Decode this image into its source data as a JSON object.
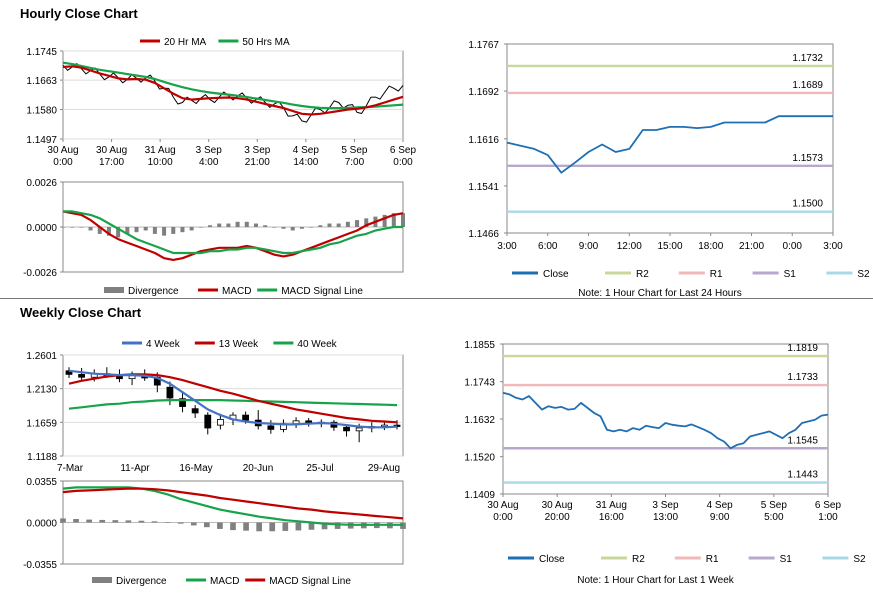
{
  "sections": {
    "hourly_title": "Hourly Close Chart",
    "weekly_title": "Weekly Close Chart"
  },
  "colors": {
    "close": "#1F6FB3",
    "ma_red": "#C00000",
    "ma_green": "#16A34A",
    "r2": "#C8D89A",
    "r1": "#F0B8B8",
    "s1": "#B8A8CE",
    "s2": "#A8D8E8",
    "divergence": "#808080",
    "week4": "#4472C4"
  },
  "chart_data": [
    {
      "id": "hourly_price",
      "type": "line",
      "title": "Hourly Close Chart",
      "legend": [
        "20 Hr MA",
        "50 Hrs MA"
      ],
      "y_ticks": [
        "1.1745",
        "1.1663",
        "1.1580",
        "1.1497"
      ],
      "ylim": [
        1.1497,
        1.1745
      ],
      "x_ticks": [
        [
          "30 Aug",
          "0:00"
        ],
        [
          "30 Aug",
          "17:00"
        ],
        [
          "31 Aug",
          "10:00"
        ],
        [
          "3 Sep",
          "4:00"
        ],
        [
          "3 Sep",
          "21:00"
        ],
        [
          "4 Sep",
          "14:00"
        ],
        [
          "5 Sep",
          "7:00"
        ],
        [
          "6 Sep",
          "0:00"
        ]
      ],
      "series": [
        {
          "name": "Close",
          "values": [
            1.1705,
            1.17,
            1.1695,
            1.169,
            1.168,
            1.1672,
            1.167,
            1.1665,
            1.1668,
            1.167,
            1.166,
            1.164,
            1.1615,
            1.16,
            1.1606,
            1.1612,
            1.1608,
            1.1615,
            1.162,
            1.1618,
            1.1612,
            1.1608,
            1.16,
            1.1596,
            1.1585,
            1.1562,
            1.1548,
            1.1565,
            1.158,
            1.1585,
            1.16,
            1.1592,
            1.1572,
            1.159,
            1.1615,
            1.1628,
            1.164,
            1.1648
          ]
        },
        {
          "name": "20 Hr MA",
          "values": [
            1.17,
            1.1702,
            1.1698,
            1.169,
            1.1682,
            1.1675,
            1.1668,
            1.1665,
            1.1666,
            1.1664,
            1.1655,
            1.164,
            1.1625,
            1.1612,
            1.1608,
            1.161,
            1.1612,
            1.1613,
            1.1614,
            1.1612,
            1.1608,
            1.1602,
            1.1596,
            1.159,
            1.1584,
            1.1576,
            1.1568,
            1.1566,
            1.1568,
            1.1572,
            1.1576,
            1.158,
            1.1582,
            1.1586,
            1.1592,
            1.16,
            1.1608,
            1.1616
          ]
        },
        {
          "name": "50 Hrs MA",
          "values": [
            1.1712,
            1.1708,
            1.1703,
            1.1697,
            1.1692,
            1.1688,
            1.1684,
            1.168,
            1.1676,
            1.1672,
            1.1666,
            1.1658,
            1.165,
            1.1643,
            1.1637,
            1.1632,
            1.1628,
            1.1625,
            1.1622,
            1.1619,
            1.1615,
            1.1611,
            1.1607,
            1.1603,
            1.1599,
            1.1594,
            1.159,
            1.1587,
            1.1585,
            1.1584,
            1.1584,
            1.1585,
            1.1586,
            1.1587,
            1.1588,
            1.159,
            1.1592,
            1.1594
          ]
        }
      ]
    },
    {
      "id": "hourly_macd",
      "type": "bar",
      "legend": [
        "Divergence",
        "MACD",
        "MACD Signal Line"
      ],
      "y_ticks": [
        "0.0026",
        "0.0000",
        "-0.0026"
      ],
      "ylim": [
        -0.0026,
        0.0026
      ],
      "series": [
        {
          "name": "Divergence",
          "values": [
            0.0,
            0.0,
            0.0,
            -0.0002,
            -0.0004,
            -0.0005,
            -0.0006,
            -0.0004,
            -0.0003,
            -0.0002,
            -0.0004,
            -0.0005,
            -0.0004,
            -0.0003,
            -0.0002,
            0.0,
            0.0001,
            0.0002,
            0.0002,
            0.0003,
            0.0003,
            0.0002,
            0.0001,
            0.0,
            -0.0001,
            -0.0002,
            -0.0001,
            0.0,
            0.0001,
            0.0002,
            0.0002,
            0.0003,
            0.0004,
            0.0005,
            0.0006,
            0.0007,
            0.0008,
            0.0008
          ]
        },
        {
          "name": "MACD",
          "values": [
            0.0009,
            0.0008,
            0.0007,
            0.0004,
            0.0,
            -0.0004,
            -0.0007,
            -0.0009,
            -0.0011,
            -0.0013,
            -0.0015,
            -0.0018,
            -0.0019,
            -0.0018,
            -0.0016,
            -0.0014,
            -0.0013,
            -0.0012,
            -0.0012,
            -0.0012,
            -0.0011,
            -0.0012,
            -0.0014,
            -0.0016,
            -0.0017,
            -0.0016,
            -0.0014,
            -0.0012,
            -0.001,
            -0.0008,
            -0.0006,
            -0.0004,
            -0.0002,
            0.0001,
            0.0003,
            0.0005,
            0.0007,
            0.0008
          ]
        },
        {
          "name": "MACD Signal Line",
          "values": [
            0.0009,
            0.0009,
            0.0008,
            0.0007,
            0.0005,
            0.0002,
            -0.0001,
            -0.0004,
            -0.0007,
            -0.0009,
            -0.0011,
            -0.0013,
            -0.0015,
            -0.0015,
            -0.0015,
            -0.0015,
            -0.0014,
            -0.0014,
            -0.0013,
            -0.0013,
            -0.0012,
            -0.0012,
            -0.0013,
            -0.0014,
            -0.0015,
            -0.0015,
            -0.0014,
            -0.0013,
            -0.0012,
            -0.001,
            -0.0009,
            -0.0007,
            -0.0005,
            -0.0004,
            -0.0002,
            -0.0001,
            0.0,
            0.0
          ]
        }
      ]
    },
    {
      "id": "hourly_24h",
      "type": "line",
      "y_ticks": [
        "1.1767",
        "1.1692",
        "1.1616",
        "1.1541",
        "1.1466"
      ],
      "ylim": [
        1.1466,
        1.1767
      ],
      "x_ticks": [
        "3:00",
        "6:00",
        "9:00",
        "12:00",
        "15:00",
        "18:00",
        "21:00",
        "0:00",
        "3:00"
      ],
      "levels": [
        {
          "name": "R2",
          "value": 1.1732,
          "label": "1.1732"
        },
        {
          "name": "R1",
          "value": 1.1689,
          "label": "1.1689"
        },
        {
          "name": "S1",
          "value": 1.1573,
          "label": "1.1573"
        },
        {
          "name": "S2",
          "value": 1.15,
          "label": "1.1500"
        }
      ],
      "x": [
        0,
        1,
        2,
        3,
        4,
        5,
        6,
        7,
        8,
        9,
        10,
        11,
        12,
        13,
        14,
        15,
        16,
        17,
        18,
        19,
        20,
        21,
        22,
        23,
        24
      ],
      "values": [
        1.161,
        1.1605,
        1.16,
        1.159,
        1.1562,
        1.1578,
        1.1595,
        1.1607,
        1.1595,
        1.16,
        1.163,
        1.163,
        1.1635,
        1.1635,
        1.1633,
        1.1635,
        1.1642,
        1.1642,
        1.1642,
        1.1642,
        1.1652,
        1.1652,
        1.1652,
        1.1652,
        1.1652
      ],
      "legend": [
        "Close",
        "R2",
        "R1",
        "S1",
        "S2"
      ],
      "note": "Note: 1 Hour Chart for Last 24 Hours"
    },
    {
      "id": "weekly_price",
      "type": "line",
      "title": "Weekly Close Chart",
      "legend": [
        "4 Week",
        "13 Week",
        "40 Week"
      ],
      "y_ticks": [
        "1.2601",
        "1.2130",
        "1.1659",
        "1.1188"
      ],
      "ylim": [
        1.1188,
        1.2601
      ],
      "x_ticks": [
        "7-Mar",
        "11-Apr",
        "16-May",
        "20-Jun",
        "25-Jul",
        "29-Aug"
      ],
      "candles": [
        {
          "o": 1.238,
          "c": 1.233,
          "h": 1.243,
          "l": 1.228
        },
        {
          "o": 1.233,
          "c": 1.229,
          "h": 1.242,
          "l": 1.223
        },
        {
          "o": 1.229,
          "c": 1.234,
          "h": 1.24,
          "l": 1.223
        },
        {
          "o": 1.234,
          "c": 1.23,
          "h": 1.243,
          "l": 1.228
        },
        {
          "o": 1.231,
          "c": 1.227,
          "h": 1.24,
          "l": 1.222
        },
        {
          "o": 1.227,
          "c": 1.232,
          "h": 1.237,
          "l": 1.218
        },
        {
          "o": 1.232,
          "c": 1.228,
          "h": 1.24,
          "l": 1.224
        },
        {
          "o": 1.229,
          "c": 1.218,
          "h": 1.236,
          "l": 1.208
        },
        {
          "o": 1.215,
          "c": 1.2,
          "h": 1.223,
          "l": 1.19
        },
        {
          "o": 1.199,
          "c": 1.188,
          "h": 1.208,
          "l": 1.18
        },
        {
          "o": 1.185,
          "c": 1.179,
          "h": 1.19,
          "l": 1.172
        },
        {
          "o": 1.176,
          "c": 1.158,
          "h": 1.18,
          "l": 1.149
        },
        {
          "o": 1.162,
          "c": 1.17,
          "h": 1.178,
          "l": 1.156
        },
        {
          "o": 1.17,
          "c": 1.176,
          "h": 1.18,
          "l": 1.162
        },
        {
          "o": 1.176,
          "c": 1.169,
          "h": 1.181,
          "l": 1.164
        },
        {
          "o": 1.169,
          "c": 1.161,
          "h": 1.183,
          "l": 1.156
        },
        {
          "o": 1.161,
          "c": 1.156,
          "h": 1.169,
          "l": 1.15
        },
        {
          "o": 1.156,
          "c": 1.164,
          "h": 1.17,
          "l": 1.152
        },
        {
          "o": 1.164,
          "c": 1.168,
          "h": 1.173,
          "l": 1.158
        },
        {
          "o": 1.168,
          "c": 1.164,
          "h": 1.172,
          "l": 1.16
        },
        {
          "o": 1.164,
          "c": 1.166,
          "h": 1.17,
          "l": 1.159
        },
        {
          "o": 1.166,
          "c": 1.159,
          "h": 1.169,
          "l": 1.154
        },
        {
          "o": 1.159,
          "c": 1.154,
          "h": 1.162,
          "l": 1.146
        },
        {
          "o": 1.154,
          "c": 1.158,
          "h": 1.164,
          "l": 1.138
        },
        {
          "o": 1.158,
          "c": 1.16,
          "h": 1.166,
          "l": 1.152
        },
        {
          "o": 1.16,
          "c": 1.162,
          "h": 1.168,
          "l": 1.155
        },
        {
          "o": 1.162,
          "c": 1.16,
          "h": 1.169,
          "l": 1.156
        }
      ],
      "series": [
        {
          "name": "4 Week",
          "values": [
            1.238,
            1.236,
            1.234,
            1.233,
            1.232,
            1.232,
            1.231,
            1.228,
            1.22,
            1.208,
            1.196,
            1.184,
            1.176,
            1.17,
            1.167,
            1.165,
            1.164,
            1.163,
            1.163,
            1.164,
            1.165,
            1.164,
            1.162,
            1.16,
            1.159,
            1.159,
            1.16
          ]
        },
        {
          "name": "13 Week",
          "values": [
            1.22,
            1.224,
            1.227,
            1.23,
            1.232,
            1.233,
            1.233,
            1.232,
            1.229,
            1.225,
            1.22,
            1.215,
            1.21,
            1.206,
            1.201,
            1.196,
            1.192,
            1.188,
            1.184,
            1.181,
            1.178,
            1.175,
            1.172,
            1.17,
            1.168,
            1.167,
            1.166
          ]
        },
        {
          "name": "40 Week",
          "values": [
            1.185,
            1.187,
            1.189,
            1.191,
            1.192,
            1.194,
            1.195,
            1.1965,
            1.197,
            1.197,
            1.197,
            1.197,
            1.197,
            1.1965,
            1.196,
            1.1955,
            1.195,
            1.1945,
            1.194,
            1.1935,
            1.193,
            1.1925,
            1.192,
            1.1915,
            1.191,
            1.1905,
            1.19
          ]
        }
      ]
    },
    {
      "id": "weekly_macd",
      "type": "bar",
      "legend": [
        "Divergence",
        "MACD",
        "MACD Signal Line"
      ],
      "y_ticks": [
        "0.0355",
        "0.0000",
        "-0.0355"
      ],
      "ylim": [
        -0.0355,
        0.0355
      ],
      "series": [
        {
          "name": "Divergence",
          "values": [
            0.0035,
            0.003,
            0.0025,
            0.0022,
            0.002,
            0.0018,
            0.0015,
            0.001,
            0.0002,
            -0.001,
            -0.0025,
            -0.004,
            -0.0055,
            -0.0065,
            -0.007,
            -0.0075,
            -0.0075,
            -0.0072,
            -0.0068,
            -0.0062,
            -0.0058,
            -0.0055,
            -0.0052,
            -0.005,
            -0.0048,
            -0.005,
            -0.0055
          ]
        },
        {
          "name": "MACD",
          "values": [
            0.029,
            0.03,
            0.03,
            0.03,
            0.03,
            0.03,
            0.029,
            0.027,
            0.024,
            0.02,
            0.017,
            0.014,
            0.011,
            0.009,
            0.007,
            0.005,
            0.0035,
            0.002,
            0.001,
            0.0,
            -0.001,
            -0.0015,
            -0.002,
            -0.002,
            -0.002,
            -0.002,
            -0.002
          ]
        },
        {
          "name": "MACD Signal Line",
          "values": [
            0.026,
            0.027,
            0.0275,
            0.028,
            0.0285,
            0.029,
            0.029,
            0.0285,
            0.0275,
            0.026,
            0.0245,
            0.023,
            0.021,
            0.0195,
            0.018,
            0.0165,
            0.015,
            0.0135,
            0.012,
            0.011,
            0.0095,
            0.0085,
            0.0075,
            0.0065,
            0.0055,
            0.0045,
            0.0035
          ]
        }
      ]
    },
    {
      "id": "weekly_1week",
      "type": "line",
      "y_ticks": [
        "1.1855",
        "1.1743",
        "1.1632",
        "1.1520",
        "1.1409"
      ],
      "ylim": [
        1.1409,
        1.1855
      ],
      "x_ticks": [
        [
          "30 Aug",
          "0:00"
        ],
        [
          "30 Aug",
          "20:00"
        ],
        [
          "31 Aug",
          "16:00"
        ],
        [
          "3 Sep",
          "13:00"
        ],
        [
          "4 Sep",
          "9:00"
        ],
        [
          "5 Sep",
          "5:00"
        ],
        [
          "6 Sep",
          "1:00"
        ]
      ],
      "levels": [
        {
          "name": "R2",
          "value": 1.1819,
          "label": "1.1819"
        },
        {
          "name": "R1",
          "value": 1.1733,
          "label": "1.1733"
        },
        {
          "name": "S1",
          "value": 1.1545,
          "label": "1.1545"
        },
        {
          "name": "S2",
          "value": 1.1443,
          "label": "1.1443"
        }
      ],
      "values": [
        1.171,
        1.1705,
        1.1695,
        1.169,
        1.17,
        1.168,
        1.166,
        1.167,
        1.1665,
        1.1668,
        1.166,
        1.1662,
        1.168,
        1.1665,
        1.165,
        1.164,
        1.16,
        1.1595,
        1.16,
        1.1595,
        1.1605,
        1.16,
        1.1612,
        1.1608,
        1.1605,
        1.162,
        1.1615,
        1.1612,
        1.161,
        1.1616,
        1.1608,
        1.16,
        1.159,
        1.1575,
        1.1565,
        1.1545,
        1.1555,
        1.156,
        1.158,
        1.1585,
        1.159,
        1.1595,
        1.1585,
        1.1575,
        1.159,
        1.16,
        1.162,
        1.1625,
        1.163,
        1.1642,
        1.1645
      ],
      "legend": [
        "Close",
        "R2",
        "R1",
        "S1",
        "S2"
      ],
      "note": "Note: 1 Hour Chart for Last 1 Week"
    }
  ]
}
